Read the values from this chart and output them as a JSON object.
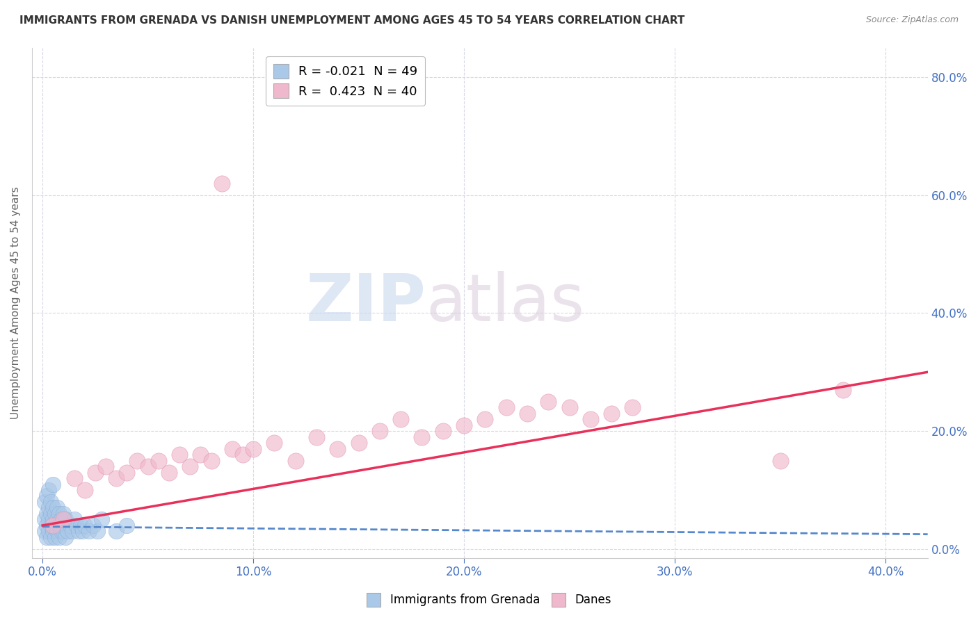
{
  "title": "IMMIGRANTS FROM GRENADA VS DANISH UNEMPLOYMENT AMONG AGES 45 TO 54 YEARS CORRELATION CHART",
  "source": "Source: ZipAtlas.com",
  "ylabel": "Unemployment Among Ages 45 to 54 years",
  "xlim": [
    -0.005,
    0.42
  ],
  "ylim": [
    -0.015,
    0.85
  ],
  "legend_r1": "R = -0.021  N = 49",
  "legend_r2": "R =  0.423  N = 40",
  "blue_scatter_x": [
    0.001,
    0.001,
    0.001,
    0.002,
    0.002,
    0.002,
    0.002,
    0.003,
    0.003,
    0.003,
    0.003,
    0.004,
    0.004,
    0.004,
    0.004,
    0.005,
    0.005,
    0.005,
    0.005,
    0.006,
    0.006,
    0.006,
    0.007,
    0.007,
    0.007,
    0.008,
    0.008,
    0.008,
    0.009,
    0.009,
    0.01,
    0.01,
    0.011,
    0.011,
    0.012,
    0.013,
    0.014,
    0.015,
    0.016,
    0.017,
    0.018,
    0.019,
    0.02,
    0.022,
    0.024,
    0.026,
    0.028,
    0.035,
    0.04
  ],
  "blue_scatter_y": [
    0.03,
    0.05,
    0.08,
    0.02,
    0.04,
    0.06,
    0.09,
    0.03,
    0.05,
    0.07,
    0.1,
    0.02,
    0.04,
    0.06,
    0.08,
    0.03,
    0.05,
    0.07,
    0.11,
    0.02,
    0.04,
    0.06,
    0.03,
    0.05,
    0.07,
    0.02,
    0.04,
    0.06,
    0.03,
    0.05,
    0.03,
    0.06,
    0.02,
    0.05,
    0.03,
    0.04,
    0.03,
    0.05,
    0.04,
    0.03,
    0.04,
    0.03,
    0.04,
    0.03,
    0.04,
    0.03,
    0.05,
    0.03,
    0.04
  ],
  "pink_scatter_x": [
    0.005,
    0.01,
    0.015,
    0.02,
    0.025,
    0.03,
    0.035,
    0.04,
    0.045,
    0.05,
    0.055,
    0.06,
    0.065,
    0.07,
    0.075,
    0.08,
    0.085,
    0.09,
    0.095,
    0.1,
    0.11,
    0.12,
    0.13,
    0.14,
    0.15,
    0.16,
    0.17,
    0.18,
    0.19,
    0.2,
    0.21,
    0.22,
    0.23,
    0.24,
    0.25,
    0.26,
    0.27,
    0.28,
    0.35,
    0.38
  ],
  "pink_scatter_y": [
    0.04,
    0.05,
    0.12,
    0.1,
    0.13,
    0.14,
    0.12,
    0.13,
    0.15,
    0.14,
    0.15,
    0.13,
    0.16,
    0.14,
    0.16,
    0.15,
    0.62,
    0.17,
    0.16,
    0.17,
    0.18,
    0.15,
    0.19,
    0.17,
    0.18,
    0.2,
    0.22,
    0.19,
    0.2,
    0.21,
    0.22,
    0.24,
    0.23,
    0.25,
    0.24,
    0.22,
    0.23,
    0.24,
    0.15,
    0.27
  ],
  "blue_line_x": [
    0.0,
    0.42
  ],
  "blue_line_y": [
    0.038,
    0.025
  ],
  "pink_line_x": [
    0.0,
    0.42
  ],
  "pink_line_y": [
    0.04,
    0.3
  ],
  "watermark_zip": "ZIP",
  "watermark_atlas": "atlas",
  "title_color": "#333333",
  "source_color": "#888888",
  "blue_color": "#aac8e8",
  "pink_color": "#f0b8cc",
  "blue_line_color": "#5588cc",
  "pink_line_color": "#e8305a",
  "axis_tick_color": "#4472c4",
  "grid_color": "#d8d8e8",
  "background_color": "#ffffff",
  "legend_blue_color": "#aac8e8",
  "legend_pink_color": "#f0b8cc"
}
